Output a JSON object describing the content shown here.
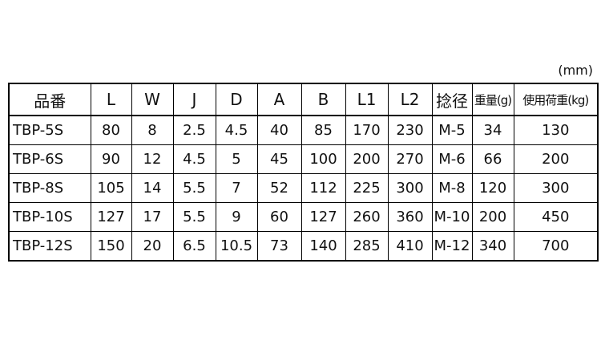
{
  "unit": "(mm)",
  "headers": [
    "品番",
    "L",
    "W",
    "J",
    "D",
    "A",
    "B",
    "L1",
    "L2",
    "捻径",
    "重量(g)",
    "使用荷重(kg)"
  ],
  "rows": [
    [
      "TBP-5S",
      "80",
      "8",
      "2.5",
      "4.5",
      "40",
      "85",
      "170",
      "230",
      "M-5",
      "34",
      "130"
    ],
    [
      "TBP-6S",
      "90",
      "12",
      "4.5",
      "5",
      "45",
      "100",
      "200",
      "270",
      "M-6",
      "66",
      "200"
    ],
    [
      "TBP-8S",
      "105",
      "14",
      "5.5",
      "7",
      "52",
      "112",
      "225",
      "300",
      "M-8",
      "120",
      "300"
    ],
    [
      "TBP-10S",
      "127",
      "17",
      "5.5",
      "9",
      "60",
      "127",
      "260",
      "360",
      "M-10",
      "200",
      "450"
    ],
    [
      "TBP-12S",
      "150",
      "20",
      "6.5",
      "10.5",
      "73",
      "140",
      "285",
      "410",
      "M-12",
      "340",
      "700"
    ]
  ]
}
